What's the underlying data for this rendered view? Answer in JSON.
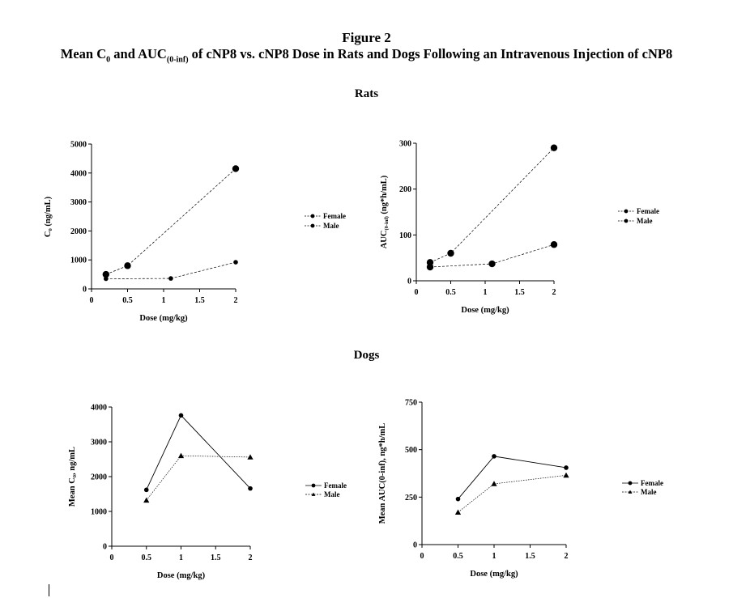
{
  "figure": {
    "title": "Figure 2",
    "subtitle_parts": [
      "Mean C",
      "0",
      " and AUC",
      "(0-inf)",
      " of cNP8 vs. cNP8 Dose in Rats and Dogs Following an Intravenous Injection of cNP8"
    ]
  },
  "sections": {
    "rats": "Rats",
    "dogs": "Dogs"
  },
  "chart_data": [
    {
      "type": "line",
      "section": "Rats",
      "xlabel": "Dose (mg/kg)",
      "ylabel_parts": [
        "C",
        "0",
        " (ng/mL)"
      ],
      "xlim": [
        0,
        2
      ],
      "ylim": [
        0,
        5000
      ],
      "xticks": [
        0,
        0.5,
        1,
        1.5,
        2
      ],
      "xtick_labels": [
        "0",
        "0.5",
        "1",
        "1.5",
        "2"
      ],
      "yticks": [
        0,
        1000,
        2000,
        3000,
        4000,
        5000
      ],
      "ytick_labels": [
        "0",
        "1000",
        "2000",
        "3000",
        "4000",
        "5000"
      ],
      "series": [
        {
          "name": "Female",
          "marker": "circle-small",
          "line": "dashed",
          "x": [
            0.2,
            1.1,
            2
          ],
          "y": [
            350,
            360,
            920
          ]
        },
        {
          "name": "Male",
          "marker": "circle-large",
          "line": "dashed",
          "x": [
            0.2,
            0.5,
            2
          ],
          "y": [
            500,
            800,
            4150
          ]
        }
      ],
      "legend_position": "right",
      "legend_markers": [
        "circle-small",
        "circle-small"
      ]
    },
    {
      "type": "line",
      "section": "Rats",
      "xlabel": "Dose (mg/kg)",
      "ylabel_parts": [
        "AUC",
        "(0-inf)",
        " (ng*h/mL)"
      ],
      "xlim": [
        0,
        2
      ],
      "ylim": [
        0,
        300
      ],
      "xticks": [
        0,
        0.5,
        1,
        1.5,
        2
      ],
      "xtick_labels": [
        "0",
        "0.5",
        "1",
        "1.5",
        "2"
      ],
      "yticks": [
        0,
        100,
        200,
        300
      ],
      "ytick_labels": [
        "0",
        "100",
        "200",
        "300"
      ],
      "series": [
        {
          "name": "Female",
          "marker": "circle-large",
          "line": "dashed",
          "x": [
            0.2,
            1.1,
            2
          ],
          "y": [
            30,
            37,
            79
          ]
        },
        {
          "name": "Male",
          "marker": "circle-large",
          "line": "dashed",
          "x": [
            0.2,
            0.5,
            2
          ],
          "y": [
            40,
            60,
            290
          ]
        }
      ],
      "legend_position": "right",
      "legend_markers": [
        "circle-small",
        "circle-small"
      ]
    },
    {
      "type": "line",
      "section": "Dogs",
      "xlabel": "Dose (mg/kg)",
      "ylabel_parts": [
        "Mean C",
        "0",
        ", ng/mL"
      ],
      "xlim": [
        0,
        2
      ],
      "ylim": [
        0,
        4000
      ],
      "xticks": [
        0,
        0.5,
        1,
        1.5,
        2
      ],
      "xtick_labels": [
        "0",
        "0.5",
        "1",
        "1.5",
        "2"
      ],
      "yticks": [
        0,
        1000,
        2000,
        3000,
        4000
      ],
      "ytick_labels": [
        "0",
        "1000",
        "2000",
        "3000",
        "4000"
      ],
      "series": [
        {
          "name": "Female",
          "marker": "circle-small",
          "line": "solid",
          "x": [
            0.5,
            1,
            2
          ],
          "y": [
            1620,
            3760,
            1660
          ]
        },
        {
          "name": "Male",
          "marker": "triangle",
          "line": "dotted",
          "x": [
            0.5,
            1,
            2
          ],
          "y": [
            1320,
            2600,
            2560
          ]
        }
      ],
      "legend_position": "right",
      "legend_markers": [
        "circle-small",
        "triangle"
      ]
    },
    {
      "type": "line",
      "section": "Dogs",
      "xlabel": "Dose (mg/kg)",
      "ylabel_parts": [
        "Mean AUC(0-inf), ng*h/mL"
      ],
      "xlim": [
        0,
        2
      ],
      "ylim": [
        0,
        750
      ],
      "xticks": [
        0,
        0.5,
        1,
        1.5,
        2
      ],
      "xtick_labels": [
        "0",
        "0.5",
        "1",
        "1.5",
        "2"
      ],
      "yticks": [
        0,
        250,
        500,
        750
      ],
      "ytick_labels": [
        "0",
        "250",
        "500",
        "750"
      ],
      "series": [
        {
          "name": "Female",
          "marker": "circle-small",
          "line": "solid",
          "x": [
            0.5,
            1,
            2
          ],
          "y": [
            240,
            465,
            405
          ]
        },
        {
          "name": "Male",
          "marker": "triangle",
          "line": "dotted",
          "x": [
            0.5,
            1,
            2
          ],
          "y": [
            170,
            320,
            365
          ]
        }
      ],
      "legend_position": "right",
      "legend_markers": [
        "circle-small",
        "triangle"
      ]
    }
  ]
}
